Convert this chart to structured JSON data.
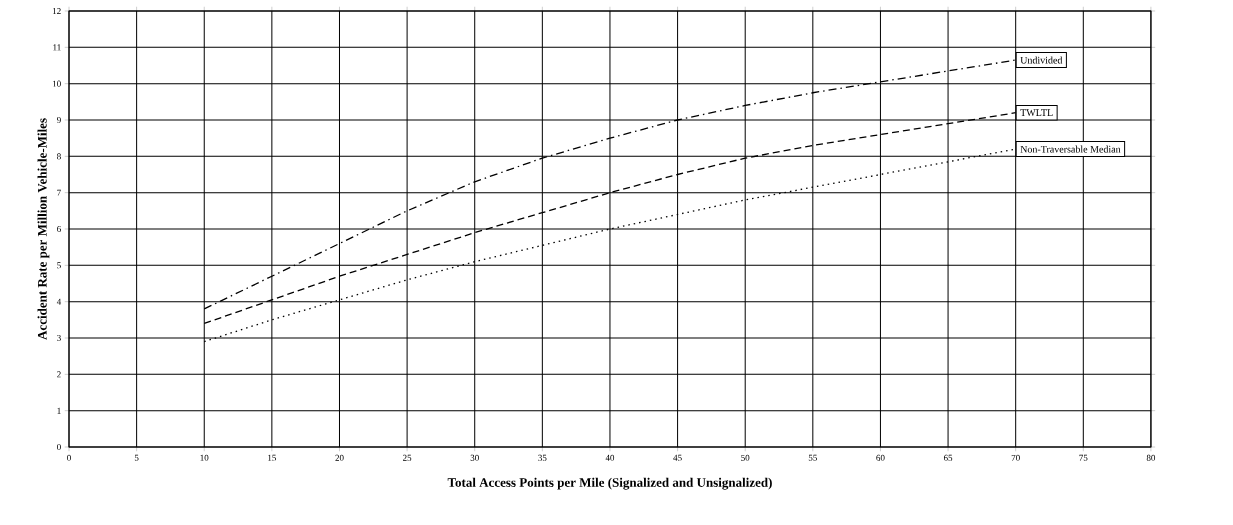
{
  "chart_data": {
    "type": "line",
    "xlabel": "Total Access Points per Mile (Signalized and Unsignalized)",
    "ylabel": "Accident Rate per Million Vehicle-Miles",
    "x": [
      10,
      15,
      20,
      25,
      30,
      35,
      40,
      45,
      50,
      55,
      60,
      65,
      70
    ],
    "series": [
      {
        "name": "Undivided",
        "color": "#000000",
        "line_style": "dashdot",
        "values": [
          3.8,
          4.7,
          5.6,
          6.5,
          7.3,
          7.95,
          8.5,
          9.0,
          9.4,
          9.75,
          10.05,
          10.35,
          10.65
        ]
      },
      {
        "name": "TWLTL",
        "color": "#000000",
        "line_style": "dashed",
        "values": [
          3.4,
          4.05,
          4.7,
          5.3,
          5.9,
          6.45,
          7.0,
          7.5,
          7.95,
          8.3,
          8.6,
          8.9,
          9.2
        ]
      },
      {
        "name": "Non-Traversable Median",
        "color": "#000000",
        "line_style": "dotted",
        "values": [
          2.9,
          3.5,
          4.05,
          4.6,
          5.1,
          5.55,
          6.0,
          6.4,
          6.8,
          7.15,
          7.5,
          7.85,
          8.2
        ]
      }
    ],
    "xlim": [
      0,
      80
    ],
    "xticks": [
      0,
      5,
      10,
      15,
      20,
      25,
      30,
      35,
      40,
      45,
      50,
      55,
      60,
      65,
      70,
      75,
      80
    ],
    "ylim": [
      0,
      12
    ],
    "yticks": [
      0,
      1,
      2,
      3,
      4,
      5,
      6,
      7,
      8,
      9,
      10,
      11,
      12
    ],
    "grid": true,
    "legend": false,
    "marker": "none"
  }
}
